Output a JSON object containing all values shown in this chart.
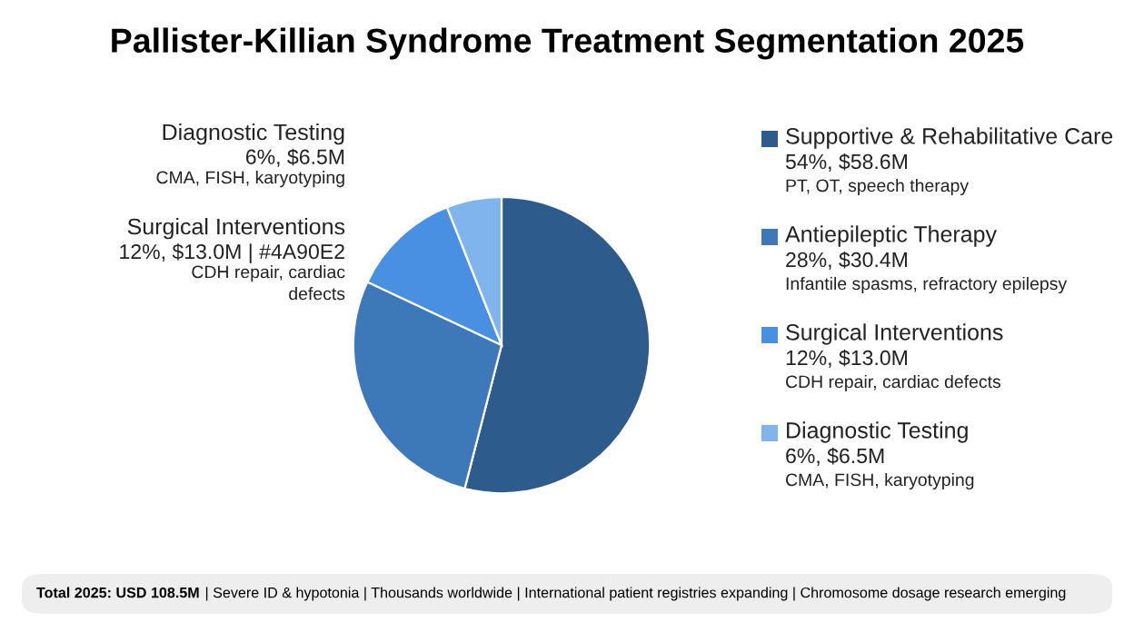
{
  "chart_data": {
    "type": "pie",
    "title": "Pallister-Killian Syndrome Treatment Segmentation 2025",
    "categories": [
      "Supportive & Rehabilitative Care",
      "Antiepileptic Therapy",
      "Surgical Interventions",
      "Diagnostic Testing"
    ],
    "values": [
      54,
      28,
      12,
      6
    ],
    "colors": [
      "#2d5b8c",
      "#3d78b8",
      "#4a90e2",
      "#80b4ec"
    ],
    "value_labels": [
      "54%, $58.6M",
      "28%, $30.4M",
      "12%, $13.0M",
      "6%, $6.5M"
    ],
    "legend": "right",
    "annotations": [
      "PT, OT, speech therapy",
      "Infantile spasms, refractory epilepsy",
      "CDH repair, cardiac defects",
      "CMA, FISH, karyotyping",
      "Diagnostic Testing\n6%, $6.5M\nCMA, FISH, karyotyping",
      "Surgical Interventions\n12%, $13.0M | #4A90E2\nCDH repair, cardiac\ndefects",
      "Total 2025: USD 108.5M",
      "| Severe ID & hypotonia | Thousands worldwide | International patient registries expanding | Chromosome dosage research emerging"
    ]
  }
}
